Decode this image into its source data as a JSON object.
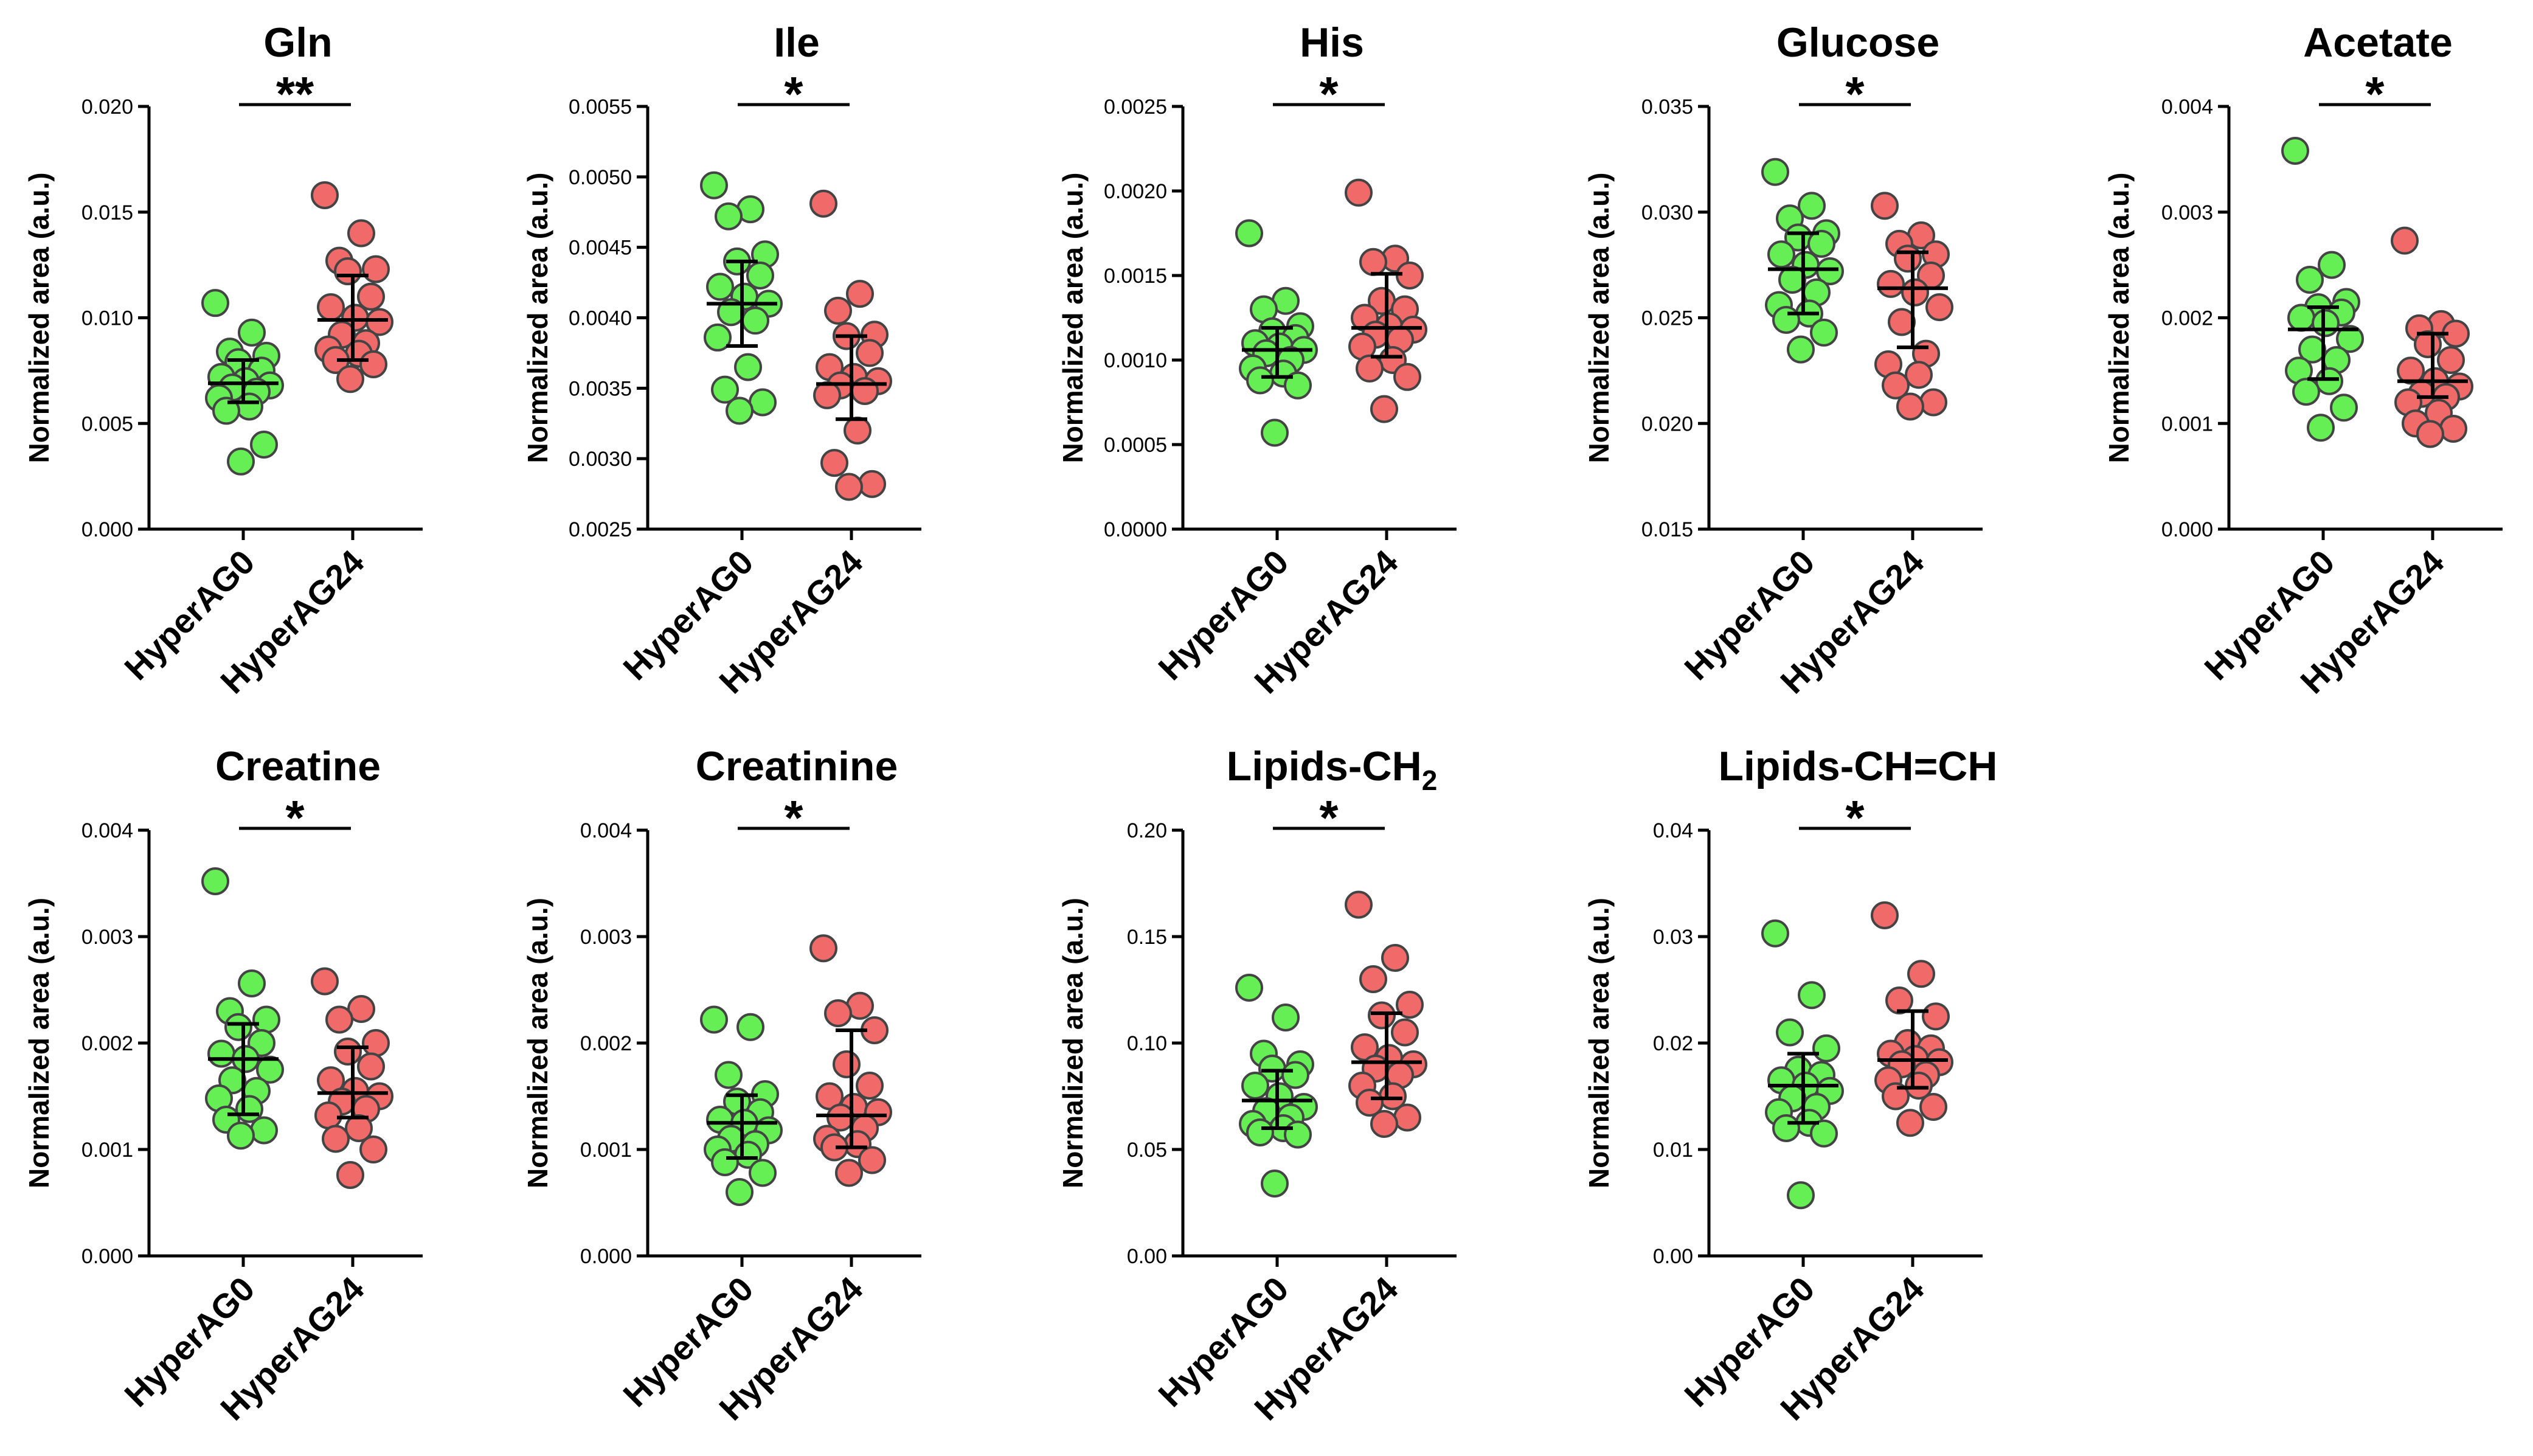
{
  "figure": {
    "description_free": true
  },
  "colors": {
    "HyperAG0": "#66ee55",
    "HyperAG24": "#f06a6a"
  },
  "chart_data": [
    {
      "type": "scatter",
      "title": "Gln",
      "ylabel": "Normalized area (a.u.)",
      "categories": [
        "HyperAG0",
        "HyperAG24"
      ],
      "ylim": [
        0,
        0.02
      ],
      "yticks": [
        "0.000",
        "0.005",
        "0.010",
        "0.015",
        "0.020"
      ],
      "significance": "**",
      "series": [
        {
          "name": "HyperAG0",
          "mean": 0.0069,
          "err_low": 0.006,
          "err_high": 0.008,
          "values": [
            0.0107,
            0.0093,
            0.0084,
            0.0082,
            0.0079,
            0.0075,
            0.0072,
            0.007,
            0.0068,
            0.0067,
            0.0065,
            0.0062,
            0.0058,
            0.0056,
            0.004,
            0.0032
          ]
        },
        {
          "name": "HyperAG24",
          "mean": 0.0099,
          "err_low": 0.008,
          "err_high": 0.012,
          "values": [
            0.0158,
            0.014,
            0.0127,
            0.0123,
            0.0122,
            0.011,
            0.0105,
            0.01,
            0.0098,
            0.0092,
            0.0088,
            0.0085,
            0.0083,
            0.008,
            0.0078,
            0.0071
          ]
        }
      ]
    },
    {
      "type": "scatter",
      "title": "Ile",
      "ylabel": "Normalized area (a.u.)",
      "categories": [
        "HyperAG0",
        "HyperAG24"
      ],
      "ylim": [
        0.0025,
        0.0055
      ],
      "yticks": [
        "0.0025",
        "0.0030",
        "0.0035",
        "0.0040",
        "0.0045",
        "0.0050",
        "0.0055"
      ],
      "significance": "*",
      "series": [
        {
          "name": "HyperAG0",
          "mean": 0.0041,
          "err_low": 0.0038,
          "err_high": 0.0044,
          "values": [
            0.00494,
            0.00477,
            0.00472,
            0.00445,
            0.0044,
            0.0043,
            0.00422,
            0.00415,
            0.0041,
            0.00404,
            0.00398,
            0.00386,
            0.00365,
            0.00349,
            0.0034,
            0.00334
          ]
        },
        {
          "name": "HyperAG24",
          "mean": 0.00353,
          "err_low": 0.00328,
          "err_high": 0.00387,
          "values": [
            0.00481,
            0.00417,
            0.00405,
            0.00388,
            0.00387,
            0.00375,
            0.00365,
            0.00358,
            0.00355,
            0.00352,
            0.00348,
            0.00345,
            0.0032,
            0.00297,
            0.00282,
            0.0028
          ]
        }
      ]
    },
    {
      "type": "scatter",
      "title": "His",
      "ylabel": "Normalized area (a.u.)",
      "categories": [
        "HyperAG0",
        "HyperAG24"
      ],
      "ylim": [
        0,
        0.0025
      ],
      "yticks": [
        "0.0000",
        "0.0005",
        "0.0010",
        "0.0015",
        "0.0020",
        "0.0025"
      ],
      "significance": "*",
      "series": [
        {
          "name": "HyperAG0",
          "mean": 0.00106,
          "err_low": 0.0009,
          "err_high": 0.00119,
          "values": [
            0.00175,
            0.00135,
            0.0013,
            0.0012,
            0.00117,
            0.00113,
            0.0011,
            0.00108,
            0.00106,
            0.00104,
            0.001,
            0.00095,
            0.00092,
            0.00088,
            0.00085,
            0.00057
          ]
        },
        {
          "name": "HyperAG24",
          "mean": 0.00119,
          "err_low": 0.00102,
          "err_high": 0.00151,
          "values": [
            0.00199,
            0.0016,
            0.00158,
            0.0015,
            0.00135,
            0.0013,
            0.00125,
            0.0012,
            0.00118,
            0.00115,
            0.00112,
            0.00108,
            0.001,
            0.00095,
            0.0009,
            0.00071
          ]
        }
      ]
    },
    {
      "type": "scatter",
      "title": "Glucose",
      "ylabel": "Normalized area (a.u.)",
      "categories": [
        "HyperAG0",
        "HyperAG24"
      ],
      "ylim": [
        0.015,
        0.035
      ],
      "yticks": [
        "0.015",
        "0.020",
        "0.025",
        "0.030",
        "0.035"
      ],
      "significance": "*",
      "series": [
        {
          "name": "HyperAG0",
          "mean": 0.0273,
          "err_low": 0.0252,
          "err_high": 0.029,
          "values": [
            0.0319,
            0.0303,
            0.0297,
            0.029,
            0.0288,
            0.0285,
            0.028,
            0.0275,
            0.0272,
            0.0268,
            0.0262,
            0.0256,
            0.0252,
            0.0249,
            0.0243,
            0.0235
          ]
        },
        {
          "name": "HyperAG24",
          "mean": 0.0264,
          "err_low": 0.0236,
          "err_high": 0.0281,
          "values": [
            0.0303,
            0.0289,
            0.0285,
            0.028,
            0.0278,
            0.027,
            0.0266,
            0.0262,
            0.0255,
            0.0248,
            0.0233,
            0.0228,
            0.0223,
            0.0218,
            0.021,
            0.0208
          ]
        }
      ]
    },
    {
      "type": "scatter",
      "title": "Acetate",
      "ylabel": "Normalized area (a.u.)",
      "categories": [
        "HyperAG0",
        "HyperAG24"
      ],
      "ylim": [
        0,
        0.004
      ],
      "yticks": [
        "0.000",
        "0.001",
        "0.002",
        "0.003",
        "0.004"
      ],
      "significance": "*",
      "series": [
        {
          "name": "HyperAG0",
          "mean": 0.00189,
          "err_low": 0.00142,
          "err_high": 0.0021,
          "values": [
            0.00358,
            0.0025,
            0.00236,
            0.00215,
            0.0021,
            0.00205,
            0.002,
            0.00195,
            0.0018,
            0.0017,
            0.0016,
            0.0015,
            0.0014,
            0.0013,
            0.00115,
            0.00096
          ]
        },
        {
          "name": "HyperAG24",
          "mean": 0.0014,
          "err_low": 0.00125,
          "err_high": 0.00185,
          "values": [
            0.00273,
            0.00194,
            0.0019,
            0.00185,
            0.00175,
            0.0016,
            0.0015,
            0.0014,
            0.00135,
            0.00128,
            0.00125,
            0.0012,
            0.0011,
            0.001,
            0.00095,
            0.0009
          ]
        }
      ]
    },
    {
      "type": "scatter",
      "title": "Creatine",
      "ylabel": "Normalized area (a.u.)",
      "categories": [
        "HyperAG0",
        "HyperAG24"
      ],
      "ylim": [
        0,
        0.004
      ],
      "yticks": [
        "0.000",
        "0.001",
        "0.002",
        "0.003",
        "0.004"
      ],
      "significance": "*",
      "series": [
        {
          "name": "HyperAG0",
          "mean": 0.00185,
          "err_low": 0.00133,
          "err_high": 0.00218,
          "values": [
            0.00352,
            0.00256,
            0.0023,
            0.00222,
            0.00215,
            0.002,
            0.0019,
            0.00185,
            0.00175,
            0.00165,
            0.00155,
            0.00148,
            0.00138,
            0.00128,
            0.00118,
            0.00113
          ]
        },
        {
          "name": "HyperAG24",
          "mean": 0.00153,
          "err_low": 0.0013,
          "err_high": 0.00196,
          "values": [
            0.00258,
            0.00232,
            0.00222,
            0.002,
            0.00192,
            0.00178,
            0.00165,
            0.00155,
            0.0015,
            0.00145,
            0.00138,
            0.00132,
            0.0012,
            0.0011,
            0.001,
            0.00076
          ]
        }
      ]
    },
    {
      "type": "scatter",
      "title": "Creatinine",
      "ylabel": "Normalized area (a.u.)",
      "categories": [
        "HyperAG0",
        "HyperAG24"
      ],
      "ylim": [
        0,
        0.004
      ],
      "yticks": [
        "0.000",
        "0.001",
        "0.002",
        "0.003",
        "0.004"
      ],
      "significance": "*",
      "series": [
        {
          "name": "HyperAG0",
          "mean": 0.00125,
          "err_low": 0.00092,
          "err_high": 0.00151,
          "values": [
            0.00222,
            0.00215,
            0.0017,
            0.00152,
            0.00145,
            0.00135,
            0.00128,
            0.00125,
            0.00118,
            0.0011,
            0.00105,
            0.001,
            0.00095,
            0.00088,
            0.00078,
            0.0006
          ]
        },
        {
          "name": "HyperAG24",
          "mean": 0.00132,
          "err_low": 0.00102,
          "err_high": 0.00212,
          "values": [
            0.00289,
            0.00235,
            0.00228,
            0.00212,
            0.0018,
            0.0016,
            0.0015,
            0.0014,
            0.00135,
            0.0013,
            0.0012,
            0.0011,
            0.00105,
            0.00102,
            0.0009,
            0.00078
          ]
        }
      ]
    },
    {
      "type": "scatter",
      "title": "Lipids-CH",
      "title_subscript": "2",
      "ylabel": "Normalized area (a.u.)",
      "categories": [
        "HyperAG0",
        "HyperAG24"
      ],
      "ylim": [
        0,
        0.2
      ],
      "yticks": [
        "0.00",
        "0.05",
        "0.10",
        "0.15",
        "0.20"
      ],
      "significance": "*",
      "series": [
        {
          "name": "HyperAG0",
          "mean": 0.073,
          "err_low": 0.06,
          "err_high": 0.087,
          "values": [
            0.126,
            0.112,
            0.095,
            0.09,
            0.088,
            0.085,
            0.08,
            0.075,
            0.07,
            0.068,
            0.065,
            0.062,
            0.06,
            0.058,
            0.057,
            0.034
          ]
        },
        {
          "name": "HyperAG24",
          "mean": 0.091,
          "err_low": 0.074,
          "err_high": 0.114,
          "values": [
            0.165,
            0.14,
            0.13,
            0.118,
            0.113,
            0.105,
            0.098,
            0.093,
            0.09,
            0.088,
            0.085,
            0.08,
            0.075,
            0.072,
            0.065,
            0.062
          ]
        }
      ]
    },
    {
      "type": "scatter",
      "title": "Lipids-CH=CH",
      "ylabel": "Normalized area (a.u.)",
      "categories": [
        "HyperAG0",
        "HyperAG24"
      ],
      "ylim": [
        0,
        0.04
      ],
      "yticks": [
        "0.00",
        "0.01",
        "0.02",
        "0.03",
        "0.04"
      ],
      "significance": "*",
      "series": [
        {
          "name": "HyperAG0",
          "mean": 0.016,
          "err_low": 0.0125,
          "err_high": 0.019,
          "values": [
            0.0303,
            0.0245,
            0.021,
            0.0195,
            0.0175,
            0.017,
            0.0165,
            0.016,
            0.0155,
            0.0148,
            0.014,
            0.0135,
            0.0125,
            0.012,
            0.0115,
            0.0057
          ]
        },
        {
          "name": "HyperAG24",
          "mean": 0.0184,
          "err_low": 0.0158,
          "err_high": 0.023,
          "values": [
            0.032,
            0.0265,
            0.024,
            0.0225,
            0.02,
            0.0195,
            0.019,
            0.0185,
            0.0182,
            0.018,
            0.017,
            0.0165,
            0.016,
            0.015,
            0.014,
            0.0125
          ]
        }
      ]
    }
  ]
}
